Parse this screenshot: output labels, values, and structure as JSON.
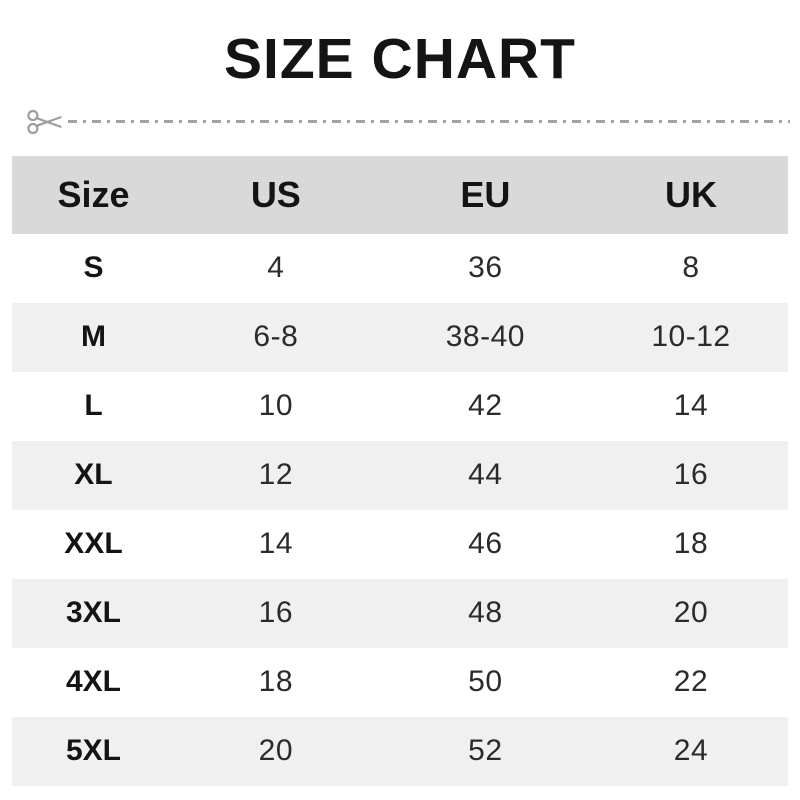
{
  "title": "SIZE CHART",
  "cut_line": {
    "icon": "scissors-icon",
    "line_color": "#a3a3a3"
  },
  "colors": {
    "header_bg": "#d9d9d9",
    "alt_row_bg": "#f0f0f0",
    "title_text": "#141414",
    "cell_text": "#2b2b2b",
    "page_bg": "#ffffff"
  },
  "chart_data": {
    "type": "table",
    "title": "SIZE CHART",
    "columns": [
      "Size",
      "US",
      "EU",
      "UK"
    ],
    "rows": [
      [
        "S",
        "4",
        "36",
        "8"
      ],
      [
        "M",
        "6-8",
        "38-40",
        "10-12"
      ],
      [
        "L",
        "10",
        "42",
        "14"
      ],
      [
        "XL",
        "12",
        "44",
        "16"
      ],
      [
        "XXL",
        "14",
        "46",
        "18"
      ],
      [
        "3XL",
        "16",
        "48",
        "20"
      ],
      [
        "4XL",
        "18",
        "50",
        "22"
      ],
      [
        "5XL",
        "20",
        "52",
        "24"
      ]
    ],
    "layout": {
      "header_background": "#d9d9d9",
      "alternating_rows": true,
      "first_shaded_data_row_index": 1
    }
  }
}
